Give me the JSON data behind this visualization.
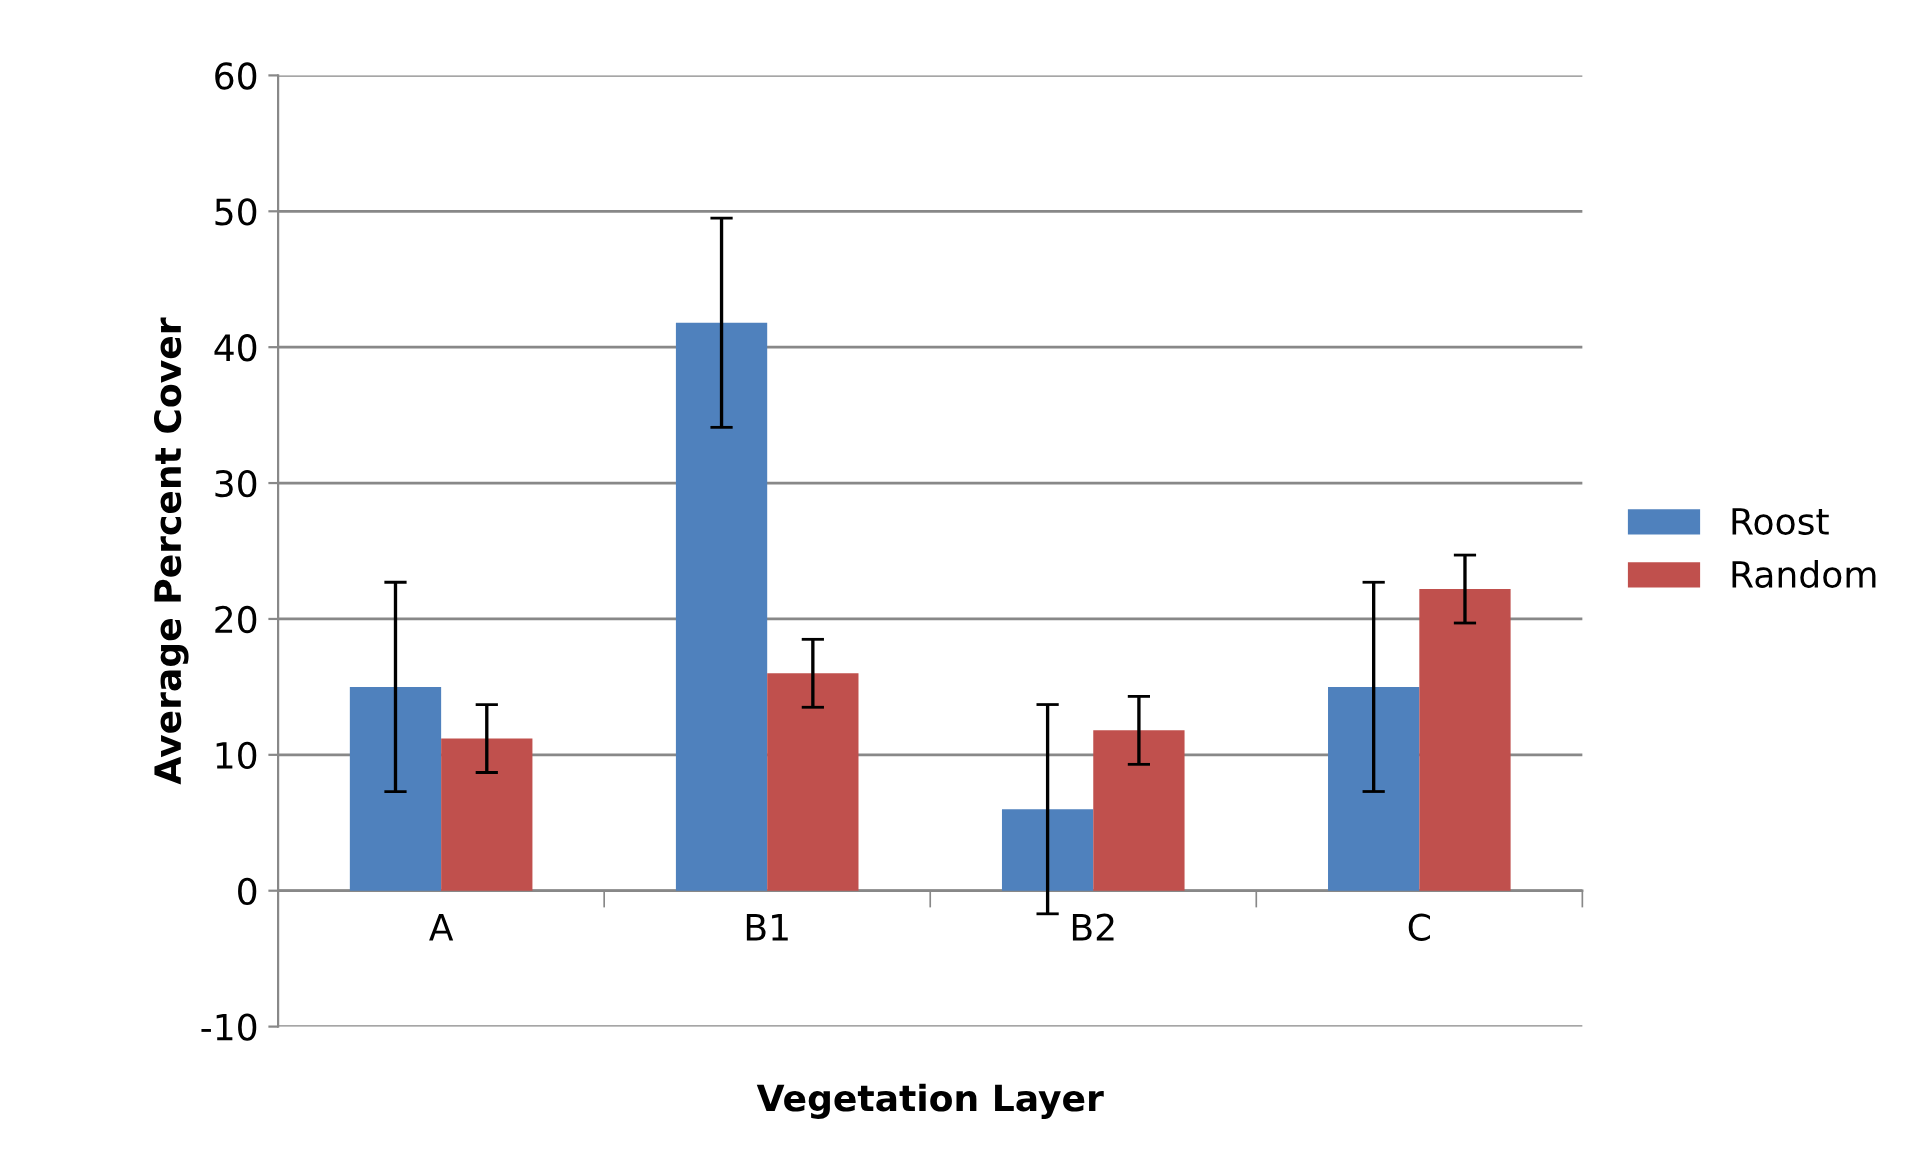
{
  "chart_data": {
    "type": "bar",
    "xlabel": "Vegetation Layer",
    "ylabel": "Average Percent Cover",
    "categories": [
      "A",
      "B1",
      "B2",
      "C"
    ],
    "series": [
      {
        "name": "Roost",
        "color": "#4f81bd",
        "values": [
          15.0,
          41.8,
          6.0,
          15.0
        ],
        "errors": [
          7.7,
          7.7,
          7.7,
          7.7
        ]
      },
      {
        "name": "Random",
        "color": "#c0504d",
        "values": [
          11.2,
          16.0,
          11.8,
          22.2
        ],
        "errors": [
          2.5,
          2.5,
          2.5,
          2.5
        ]
      }
    ],
    "ylim": [
      -10,
      60
    ],
    "yticks": [
      -10,
      0,
      10,
      20,
      30,
      40,
      50,
      60
    ],
    "grid": "y",
    "legend": "right"
  }
}
